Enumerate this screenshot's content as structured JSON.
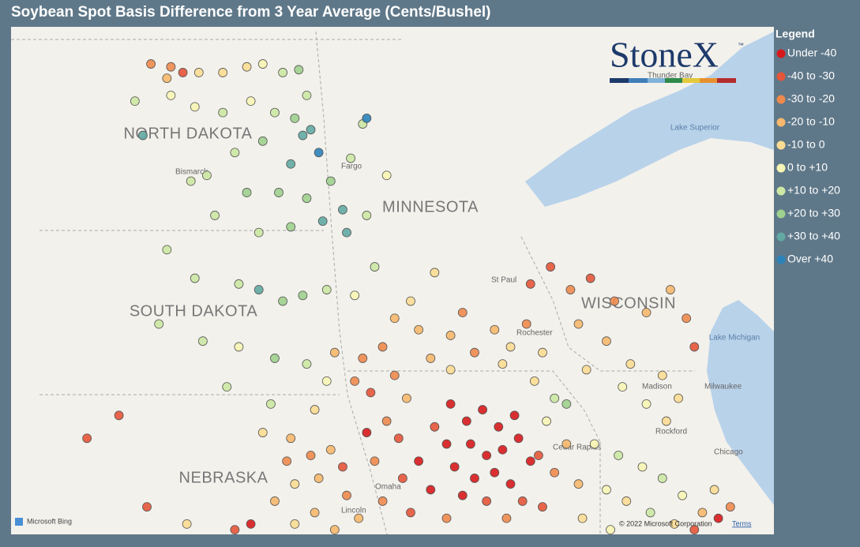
{
  "title": "Soybean Spot Basis Difference from 3 Year Average (Cents/Bushel)",
  "legend": {
    "title": "Legend",
    "items": [
      {
        "label": "Under -40",
        "color": "#d7191c"
      },
      {
        "label": "-40 to -30",
        "color": "#e4553a"
      },
      {
        "label": "-30 to -20",
        "color": "#ee8a4e"
      },
      {
        "label": "-20 to -10",
        "color": "#f6b86d"
      },
      {
        "label": "-10 to 0",
        "color": "#fbdc92"
      },
      {
        "label": "0 to +10",
        "color": "#f7f5b4"
      },
      {
        "label": "+10 to +20",
        "color": "#cce8a4"
      },
      {
        "label": "+20 to +30",
        "color": "#9fd08e"
      },
      {
        "label": "+30 to +40",
        "color": "#62aaa3"
      },
      {
        "label": "Over +40",
        "color": "#2c83ba"
      }
    ]
  },
  "logo": {
    "name": "StoneX",
    "mark": "™"
  },
  "map_labels": {
    "states": [
      "NORTH DAKOTA",
      "MINNESOTA",
      "SOUTH DAKOTA",
      "WISCONSIN",
      "NEBRASKA"
    ],
    "cities": [
      "Bismarck",
      "Fargo",
      "St Paul",
      "Rochester",
      "Madison",
      "Milwaukee",
      "Rockford",
      "Chicago",
      "Cedar Rapids",
      "Omaha",
      "Lincoln",
      "Thunder Bay"
    ],
    "lakes": [
      "Lake Superior",
      "Lake Michigan"
    ]
  },
  "attribution": {
    "provider": "Microsoft Bing",
    "copyright": "© 2022 Microsoft Corporation",
    "terms": "Terms"
  },
  "points": [
    [
      -101.4,
      48.85,
      2
    ],
    [
      -100.9,
      48.8,
      2
    ],
    [
      -100.6,
      48.7,
      1
    ],
    [
      -101.0,
      48.6,
      3
    ],
    [
      -100.2,
      48.7,
      4
    ],
    [
      -99.6,
      48.7,
      4
    ],
    [
      -99.0,
      48.8,
      4
    ],
    [
      -98.6,
      48.85,
      5
    ],
    [
      -98.1,
      48.7,
      6
    ],
    [
      -97.7,
      48.75,
      7
    ],
    [
      -97.5,
      48.3,
      6
    ],
    [
      -101.8,
      48.2,
      6
    ],
    [
      -100.9,
      48.3,
      5
    ],
    [
      -100.3,
      48.1,
      5
    ],
    [
      -99.6,
      48.0,
      6
    ],
    [
      -98.9,
      48.2,
      5
    ],
    [
      -98.3,
      48.0,
      6
    ],
    [
      -97.8,
      47.9,
      7
    ],
    [
      -97.6,
      47.6,
      8
    ],
    [
      -97.2,
      47.3,
      9
    ],
    [
      -97.9,
      47.1,
      8
    ],
    [
      -98.6,
      47.5,
      7
    ],
    [
      -99.3,
      47.3,
      6
    ],
    [
      -100.0,
      46.9,
      6
    ],
    [
      -101.6,
      47.6,
      8
    ],
    [
      -100.4,
      46.8,
      6
    ],
    [
      -99.0,
      46.6,
      7
    ],
    [
      -98.2,
      46.6,
      7
    ],
    [
      -97.5,
      46.5,
      7
    ],
    [
      -96.9,
      46.8,
      7
    ],
    [
      -96.6,
      46.3,
      8
    ],
    [
      -97.1,
      46.1,
      8
    ],
    [
      -96.5,
      45.9,
      8
    ],
    [
      -97.9,
      46.0,
      7
    ],
    [
      -98.7,
      45.9,
      6
    ],
    [
      -99.8,
      46.2,
      6
    ],
    [
      -101.0,
      45.6,
      6
    ],
    [
      -100.3,
      45.1,
      6
    ],
    [
      -99.2,
      45.0,
      6
    ],
    [
      -98.7,
      44.9,
      8
    ],
    [
      -98.1,
      44.7,
      7
    ],
    [
      -97.6,
      44.8,
      7
    ],
    [
      -97.0,
      44.9,
      6
    ],
    [
      -96.3,
      44.8,
      5
    ],
    [
      -95.8,
      45.3,
      6
    ],
    [
      -96.0,
      46.2,
      6
    ],
    [
      -95.5,
      46.9,
      5
    ],
    [
      -96.4,
      47.2,
      6
    ],
    [
      -96.1,
      47.8,
      6
    ],
    [
      -96.0,
      47.9,
      9
    ],
    [
      -97.4,
      47.7,
      8
    ],
    [
      -101.2,
      44.3,
      6
    ],
    [
      -100.1,
      44.0,
      6
    ],
    [
      -99.2,
      43.9,
      5
    ],
    [
      -98.3,
      43.7,
      7
    ],
    [
      -97.5,
      43.6,
      6
    ],
    [
      -97.0,
      43.3,
      5
    ],
    [
      -96.8,
      43.8,
      3
    ],
    [
      -96.3,
      43.3,
      2
    ],
    [
      -99.5,
      43.2,
      6
    ],
    [
      -98.4,
      42.9,
      6
    ],
    [
      -97.3,
      42.8,
      4
    ],
    [
      -102.2,
      42.7,
      1
    ],
    [
      -103.0,
      42.3,
      1
    ],
    [
      -101.5,
      41.1,
      1
    ],
    [
      -100.5,
      40.8,
      4
    ],
    [
      -99.3,
      40.7,
      1
    ],
    [
      -98.9,
      40.8,
      0
    ],
    [
      -98.6,
      42.4,
      4
    ],
    [
      -97.9,
      42.3,
      3
    ],
    [
      -97.4,
      42.0,
      2
    ],
    [
      -96.9,
      42.1,
      3
    ],
    [
      -96.6,
      41.8,
      1
    ],
    [
      -97.2,
      41.6,
      3
    ],
    [
      -97.8,
      41.5,
      4
    ],
    [
      -98.3,
      41.2,
      3
    ],
    [
      -97.3,
      41.0,
      3
    ],
    [
      -96.5,
      41.3,
      2
    ],
    [
      -96.2,
      40.9,
      3
    ],
    [
      -96.8,
      40.7,
      3
    ],
    [
      -97.8,
      40.8,
      4
    ],
    [
      -98.0,
      41.9,
      2
    ],
    [
      -96.1,
      43.7,
      2
    ],
    [
      -95.6,
      43.9,
      2
    ],
    [
      -95.9,
      43.1,
      1
    ],
    [
      -95.3,
      43.4,
      2
    ],
    [
      -95.0,
      43.0,
      3
    ],
    [
      -95.5,
      42.6,
      2
    ],
    [
      -96.0,
      42.4,
      0
    ],
    [
      -95.2,
      42.3,
      1
    ],
    [
      -95.8,
      41.9,
      2
    ],
    [
      -95.1,
      41.6,
      1
    ],
    [
      -94.7,
      41.9,
      0
    ],
    [
      -94.4,
      41.4,
      0
    ],
    [
      -95.6,
      41.2,
      2
    ],
    [
      -94.9,
      41.0,
      1
    ],
    [
      -94.0,
      40.9,
      2
    ],
    [
      -95.3,
      44.4,
      3
    ],
    [
      -94.7,
      44.2,
      3
    ],
    [
      -94.9,
      44.7,
      4
    ],
    [
      -94.3,
      45.2,
      4
    ],
    [
      -93.6,
      44.5,
      2
    ],
    [
      -93.9,
      44.1,
      3
    ],
    [
      -94.4,
      43.7,
      3
    ],
    [
      -93.9,
      43.5,
      4
    ],
    [
      -93.3,
      43.8,
      2
    ],
    [
      -92.8,
      44.2,
      3
    ],
    [
      -92.4,
      43.9,
      4
    ],
    [
      -92.0,
      44.3,
      2
    ],
    [
      -91.6,
      43.8,
      4
    ],
    [
      -92.6,
      43.6,
      4
    ],
    [
      -91.8,
      43.3,
      4
    ],
    [
      -91.3,
      43.0,
      6
    ],
    [
      -91.0,
      42.9,
      7
    ],
    [
      -91.5,
      42.6,
      5
    ],
    [
      -93.9,
      42.9,
      0
    ],
    [
      -93.5,
      42.6,
      0
    ],
    [
      -93.1,
      42.8,
      0
    ],
    [
      -92.7,
      42.5,
      0
    ],
    [
      -92.3,
      42.7,
      0
    ],
    [
      -93.4,
      42.2,
      0
    ],
    [
      -93.0,
      42.0,
      0
    ],
    [
      -92.6,
      42.1,
      0
    ],
    [
      -92.2,
      42.3,
      0
    ],
    [
      -91.9,
      41.9,
      0
    ],
    [
      -93.8,
      41.8,
      0
    ],
    [
      -93.3,
      41.6,
      0
    ],
    [
      -92.8,
      41.7,
      0
    ],
    [
      -92.4,
      41.5,
      0
    ],
    [
      -93.6,
      41.3,
      0
    ],
    [
      -93.0,
      41.2,
      1
    ],
    [
      -92.1,
      41.2,
      1
    ],
    [
      -94.3,
      42.5,
      1
    ],
    [
      -94.0,
      42.2,
      0
    ],
    [
      -91.7,
      42.0,
      1
    ],
    [
      -91.3,
      41.7,
      2
    ],
    [
      -91.0,
      42.2,
      3
    ],
    [
      -90.7,
      41.5,
      3
    ],
    [
      -91.6,
      41.1,
      1
    ],
    [
      -92.5,
      40.9,
      2
    ],
    [
      -91.9,
      45.0,
      1
    ],
    [
      -91.4,
      45.3,
      1
    ],
    [
      -90.9,
      44.9,
      2
    ],
    [
      -90.4,
      45.1,
      1
    ],
    [
      -89.8,
      44.7,
      2
    ],
    [
      -89.0,
      44.5,
      3
    ],
    [
      -88.4,
      44.9,
      3
    ],
    [
      -88.0,
      44.4,
      2
    ],
    [
      -87.8,
      43.9,
      1
    ],
    [
      -90.7,
      44.3,
      3
    ],
    [
      -90.0,
      44.0,
      3
    ],
    [
      -89.4,
      43.6,
      4
    ],
    [
      -88.6,
      43.4,
      4
    ],
    [
      -88.2,
      43.0,
      4
    ],
    [
      -89.6,
      43.2,
      5
    ],
    [
      -90.5,
      43.5,
      4
    ],
    [
      -89.0,
      42.9,
      5
    ],
    [
      -88.5,
      42.6,
      4
    ],
    [
      -90.3,
      42.2,
      5
    ],
    [
      -89.7,
      42.0,
      6
    ],
    [
      -89.1,
      41.8,
      5
    ],
    [
      -88.6,
      41.6,
      6
    ],
    [
      -88.1,
      41.3,
      5
    ],
    [
      -90.0,
      41.4,
      5
    ],
    [
      -89.5,
      41.2,
      4
    ],
    [
      -88.9,
      41.0,
      6
    ],
    [
      -88.3,
      40.8,
      4
    ],
    [
      -87.6,
      41.0,
      3
    ],
    [
      -87.2,
      40.9,
      0
    ],
    [
      -86.9,
      41.1,
      2
    ],
    [
      -90.6,
      40.9,
      4
    ],
    [
      -89.9,
      40.7,
      5
    ],
    [
      -87.8,
      40.7,
      1
    ],
    [
      -87.3,
      41.4,
      4
    ]
  ]
}
